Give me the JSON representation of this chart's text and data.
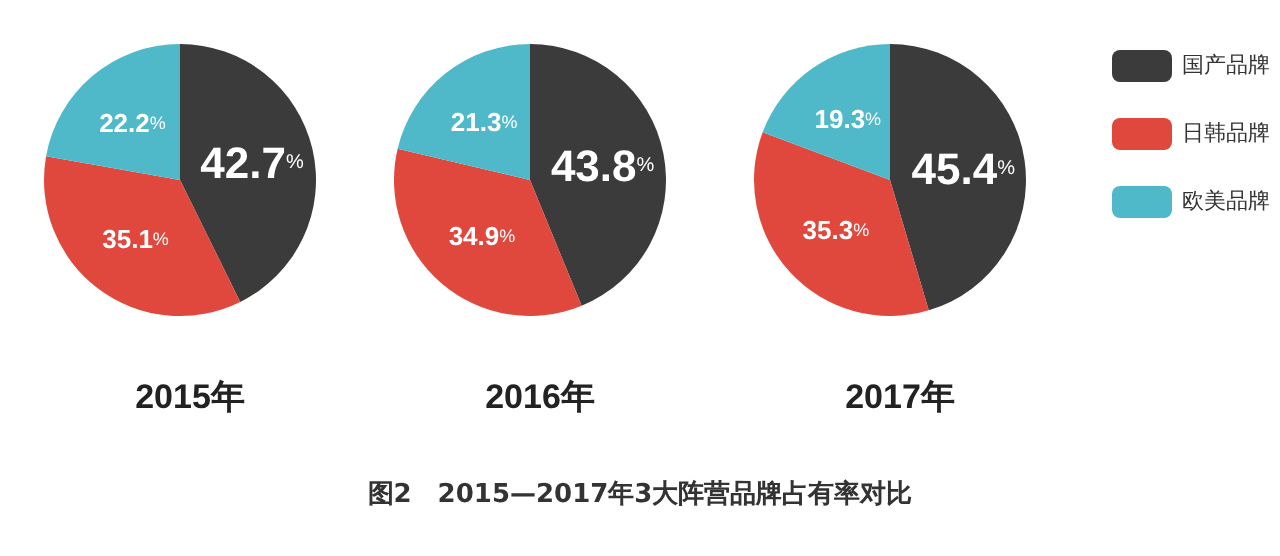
{
  "chart_data": [
    {
      "type": "pie",
      "title": "2015年",
      "categories": [
        null,
        null,
        null
      ],
      "values": [
        42.7,
        35.1,
        22.2
      ],
      "value_labels": [
        "42.7%",
        "35.1%",
        "22.2%"
      ],
      "colors": [
        "#3b3b3b",
        "#e0483e",
        "#4fb9c9"
      ],
      "legend": false,
      "annotations": [
        "图2　2015—2017年3大阵营品牌占有率对比"
      ]
    },
    {
      "type": "pie",
      "title": "2016年",
      "categories": [
        null,
        null,
        null
      ],
      "values": [
        43.8,
        34.9,
        21.3
      ],
      "value_labels": [
        "43.8%",
        "34.9%",
        "21.3%"
      ],
      "colors": [
        "#3b3b3b",
        "#e0483e",
        "#4fb9c9"
      ],
      "legend": false
    },
    {
      "type": "pie",
      "title": "2017年",
      "categories": [
        "国产品牌",
        "日韩品牌",
        "欧美品牌"
      ],
      "values": [
        45.4,
        35.3,
        19.3
      ],
      "value_labels": [
        "45.4%",
        "35.3%",
        "19.3%"
      ],
      "colors": [
        "#3b3b3b",
        "#e0483e",
        "#4fb9c9"
      ],
      "legend": "right"
    }
  ]
}
